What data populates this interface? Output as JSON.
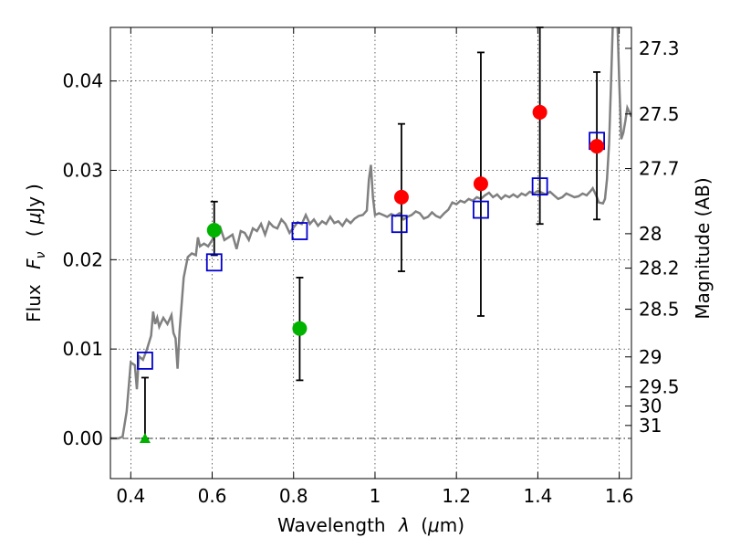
{
  "chart_data": {
    "type": "scatter",
    "xlabel": {
      "prefix": "Wavelength",
      "symbol": "λ",
      "unit_open": "(",
      "unit_mu": "μ",
      "unit_rest": "m)"
    },
    "ylabel": {
      "prefix": "Flux",
      "symbol": "F",
      "subscript": "ν",
      "unit_open": "(",
      "unit_mu": "μ",
      "unit_rest": "Jy",
      "unit_close": ")"
    },
    "y2label": "Magnitude (AB)",
    "xlim": [
      0.35,
      1.63
    ],
    "ylim": [
      -0.0045,
      0.046
    ],
    "x_ticks": [
      {
        "value": 0.4,
        "label": "0.4"
      },
      {
        "value": 0.6,
        "label": "0.6"
      },
      {
        "value": 0.8,
        "label": "0.8"
      },
      {
        "value": 1.0,
        "label": "1"
      },
      {
        "value": 1.2,
        "label": "1.2"
      },
      {
        "value": 1.4,
        "label": "1.4"
      },
      {
        "value": 1.6,
        "label": "1.6"
      }
    ],
    "y_ticks": [
      {
        "value": 0.0,
        "label": "0.00"
      },
      {
        "value": 0.01,
        "label": "0.01"
      },
      {
        "value": 0.02,
        "label": "0.02"
      },
      {
        "value": 0.03,
        "label": "0.03"
      },
      {
        "value": 0.04,
        "label": "0.04"
      }
    ],
    "mag_ticks": [
      {
        "value": 27.3,
        "label": "27.3"
      },
      {
        "value": 27.5,
        "label": "27.5"
      },
      {
        "value": 27.7,
        "label": "27.7"
      },
      {
        "value": 28.0,
        "label": "28"
      },
      {
        "value": 28.2,
        "label": "28.2"
      },
      {
        "value": 28.5,
        "label": "28.5"
      },
      {
        "value": 29.0,
        "label": "29"
      },
      {
        "value": 29.5,
        "label": "29.5"
      },
      {
        "value": 30.0,
        "label": "30"
      },
      {
        "value": 31.0,
        "label": "31"
      }
    ],
    "grid": true,
    "zero_line": true,
    "colors": {
      "model": "#808080",
      "red_points": "#ff0000",
      "green_points": "#00b300",
      "model_boxes": "#0000cc",
      "errorbar": "#000000"
    },
    "model_spectrum": [
      [
        0.35,
        0.0
      ],
      [
        0.37,
        0.0
      ],
      [
        0.38,
        0.0002
      ],
      [
        0.39,
        0.003
      ],
      [
        0.4,
        0.0085
      ],
      [
        0.41,
        0.0082
      ],
      [
        0.415,
        0.0055
      ],
      [
        0.42,
        0.0092
      ],
      [
        0.43,
        0.0088
      ],
      [
        0.44,
        0.01
      ],
      [
        0.45,
        0.0115
      ],
      [
        0.455,
        0.0142
      ],
      [
        0.46,
        0.0128
      ],
      [
        0.465,
        0.0135
      ],
      [
        0.47,
        0.0125
      ],
      [
        0.48,
        0.0135
      ],
      [
        0.49,
        0.0128
      ],
      [
        0.5,
        0.0138
      ],
      [
        0.505,
        0.0118
      ],
      [
        0.51,
        0.0112
      ],
      [
        0.515,
        0.0078
      ],
      [
        0.52,
        0.012
      ],
      [
        0.53,
        0.018
      ],
      [
        0.54,
        0.0203
      ],
      [
        0.55,
        0.0207
      ],
      [
        0.56,
        0.0205
      ],
      [
        0.565,
        0.0225
      ],
      [
        0.57,
        0.0215
      ],
      [
        0.58,
        0.0218
      ],
      [
        0.59,
        0.0215
      ],
      [
        0.6,
        0.0222
      ],
      [
        0.61,
        0.023
      ],
      [
        0.62,
        0.0236
      ],
      [
        0.63,
        0.0222
      ],
      [
        0.64,
        0.0225
      ],
      [
        0.65,
        0.0228
      ],
      [
        0.66,
        0.0212
      ],
      [
        0.67,
        0.0232
      ],
      [
        0.68,
        0.023
      ],
      [
        0.69,
        0.0222
      ],
      [
        0.7,
        0.0235
      ],
      [
        0.71,
        0.0232
      ],
      [
        0.72,
        0.024
      ],
      [
        0.73,
        0.0228
      ],
      [
        0.74,
        0.0242
      ],
      [
        0.75,
        0.0237
      ],
      [
        0.76,
        0.0235
      ],
      [
        0.77,
        0.0245
      ],
      [
        0.78,
        0.024
      ],
      [
        0.79,
        0.023
      ],
      [
        0.8,
        0.0236
      ],
      [
        0.81,
        0.0242
      ],
      [
        0.82,
        0.024
      ],
      [
        0.83,
        0.025
      ],
      [
        0.84,
        0.024
      ],
      [
        0.85,
        0.0245
      ],
      [
        0.86,
        0.0238
      ],
      [
        0.87,
        0.0243
      ],
      [
        0.88,
        0.024
      ],
      [
        0.89,
        0.0248
      ],
      [
        0.9,
        0.0241
      ],
      [
        0.91,
        0.0243
      ],
      [
        0.92,
        0.0238
      ],
      [
        0.93,
        0.0245
      ],
      [
        0.94,
        0.0241
      ],
      [
        0.95,
        0.0246
      ],
      [
        0.96,
        0.0249
      ],
      [
        0.97,
        0.025
      ],
      [
        0.98,
        0.0255
      ],
      [
        0.985,
        0.029
      ],
      [
        0.99,
        0.0306
      ],
      [
        0.995,
        0.027
      ],
      [
        1.0,
        0.025
      ],
      [
        1.01,
        0.0252
      ],
      [
        1.02,
        0.025
      ],
      [
        1.03,
        0.0248
      ],
      [
        1.04,
        0.0251
      ],
      [
        1.05,
        0.0249
      ],
      [
        1.06,
        0.0252
      ],
      [
        1.07,
        0.0245
      ],
      [
        1.08,
        0.0248
      ],
      [
        1.09,
        0.025
      ],
      [
        1.1,
        0.0254
      ],
      [
        1.11,
        0.0252
      ],
      [
        1.12,
        0.0246
      ],
      [
        1.13,
        0.0248
      ],
      [
        1.14,
        0.0253
      ],
      [
        1.15,
        0.0249
      ],
      [
        1.16,
        0.0247
      ],
      [
        1.17,
        0.0252
      ],
      [
        1.18,
        0.0256
      ],
      [
        1.19,
        0.0264
      ],
      [
        1.2,
        0.0262
      ],
      [
        1.21,
        0.0266
      ],
      [
        1.22,
        0.0264
      ],
      [
        1.23,
        0.0268
      ],
      [
        1.24,
        0.0266
      ],
      [
        1.25,
        0.027
      ],
      [
        1.26,
        0.0268
      ],
      [
        1.27,
        0.0272
      ],
      [
        1.28,
        0.0275
      ],
      [
        1.29,
        0.027
      ],
      [
        1.3,
        0.0273
      ],
      [
        1.31,
        0.0268
      ],
      [
        1.32,
        0.0272
      ],
      [
        1.33,
        0.027
      ],
      [
        1.34,
        0.0273
      ],
      [
        1.35,
        0.027
      ],
      [
        1.36,
        0.0274
      ],
      [
        1.37,
        0.0272
      ],
      [
        1.38,
        0.0276
      ],
      [
        1.39,
        0.0274
      ],
      [
        1.4,
        0.0277
      ],
      [
        1.41,
        0.0275
      ],
      [
        1.42,
        0.0273
      ],
      [
        1.43,
        0.0276
      ],
      [
        1.44,
        0.0272
      ],
      [
        1.45,
        0.0268
      ],
      [
        1.46,
        0.027
      ],
      [
        1.47,
        0.0274
      ],
      [
        1.48,
        0.0272
      ],
      [
        1.49,
        0.027
      ],
      [
        1.5,
        0.0271
      ],
      [
        1.51,
        0.0274
      ],
      [
        1.52,
        0.0272
      ],
      [
        1.53,
        0.0277
      ],
      [
        1.535,
        0.028
      ],
      [
        1.54,
        0.0275
      ],
      [
        1.545,
        0.027
      ],
      [
        1.55,
        0.0264
      ],
      [
        1.56,
        0.0263
      ],
      [
        1.565,
        0.0268
      ],
      [
        1.57,
        0.029
      ],
      [
        1.575,
        0.033
      ],
      [
        1.58,
        0.04
      ],
      [
        1.585,
        0.0475
      ],
      [
        1.595,
        0.0475
      ],
      [
        1.6,
        0.04
      ],
      [
        1.605,
        0.0335
      ],
      [
        1.61,
        0.0342
      ],
      [
        1.615,
        0.0355
      ],
      [
        1.62,
        0.037
      ],
      [
        1.625,
        0.0365
      ],
      [
        1.63,
        0.036
      ]
    ],
    "observed_points": [
      {
        "x": 0.605,
        "y": 0.0233,
        "color": "green",
        "marker": "circle",
        "err_low": 0.0205,
        "err_high": 0.0265
      },
      {
        "x": 0.815,
        "y": 0.0123,
        "color": "green",
        "marker": "circle",
        "err_low": 0.0065,
        "err_high": 0.018
      },
      {
        "x": 1.065,
        "y": 0.027,
        "color": "red",
        "marker": "circle",
        "err_low": 0.0187,
        "err_high": 0.0352
      },
      {
        "x": 1.26,
        "y": 0.0285,
        "color": "red",
        "marker": "circle",
        "err_low": 0.0137,
        "err_high": 0.0432
      },
      {
        "x": 1.405,
        "y": 0.0365,
        "color": "red",
        "marker": "circle",
        "err_low": 0.024,
        "err_high": 0.046
      },
      {
        "x": 1.545,
        "y": 0.0327,
        "color": "red",
        "marker": "circle",
        "err_low": 0.0245,
        "err_high": 0.041
      },
      {
        "x": 0.435,
        "y": 0.0,
        "color": "green",
        "marker": "triangle",
        "err_low": 0.0,
        "err_high": 0.0068
      }
    ],
    "model_photometry": [
      {
        "x": 0.435,
        "y": 0.0087
      },
      {
        "x": 0.605,
        "y": 0.0197
      },
      {
        "x": 0.815,
        "y": 0.0232
      },
      {
        "x": 1.06,
        "y": 0.024
      },
      {
        "x": 1.26,
        "y": 0.0256
      },
      {
        "x": 1.405,
        "y": 0.0282
      },
      {
        "x": 1.545,
        "y": 0.0333
      }
    ]
  }
}
